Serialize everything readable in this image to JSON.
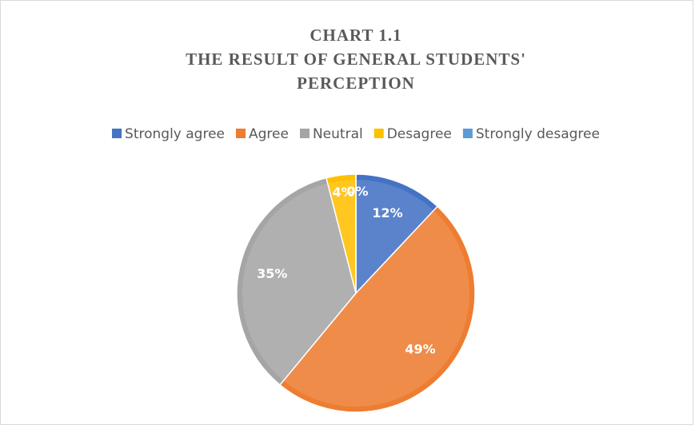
{
  "chart_data": {
    "type": "pie",
    "title": [
      "CHART 1.1",
      "THE RESULT OF GENERAL STUDENTS'",
      "PERCEPTION"
    ],
    "categories": [
      "Strongly agree",
      "Agree",
      "Neutral",
      "Desagree",
      "Strongly desagree"
    ],
    "values": [
      12,
      49,
      35,
      4,
      0
    ],
    "value_labels": [
      "12%",
      "49%",
      "35%",
      "4%",
      "0%"
    ],
    "colors": [
      "#4472c4",
      "#ed7d31",
      "#a5a5a5",
      "#ffc000",
      "#5b9bd5"
    ],
    "legend": "top"
  }
}
